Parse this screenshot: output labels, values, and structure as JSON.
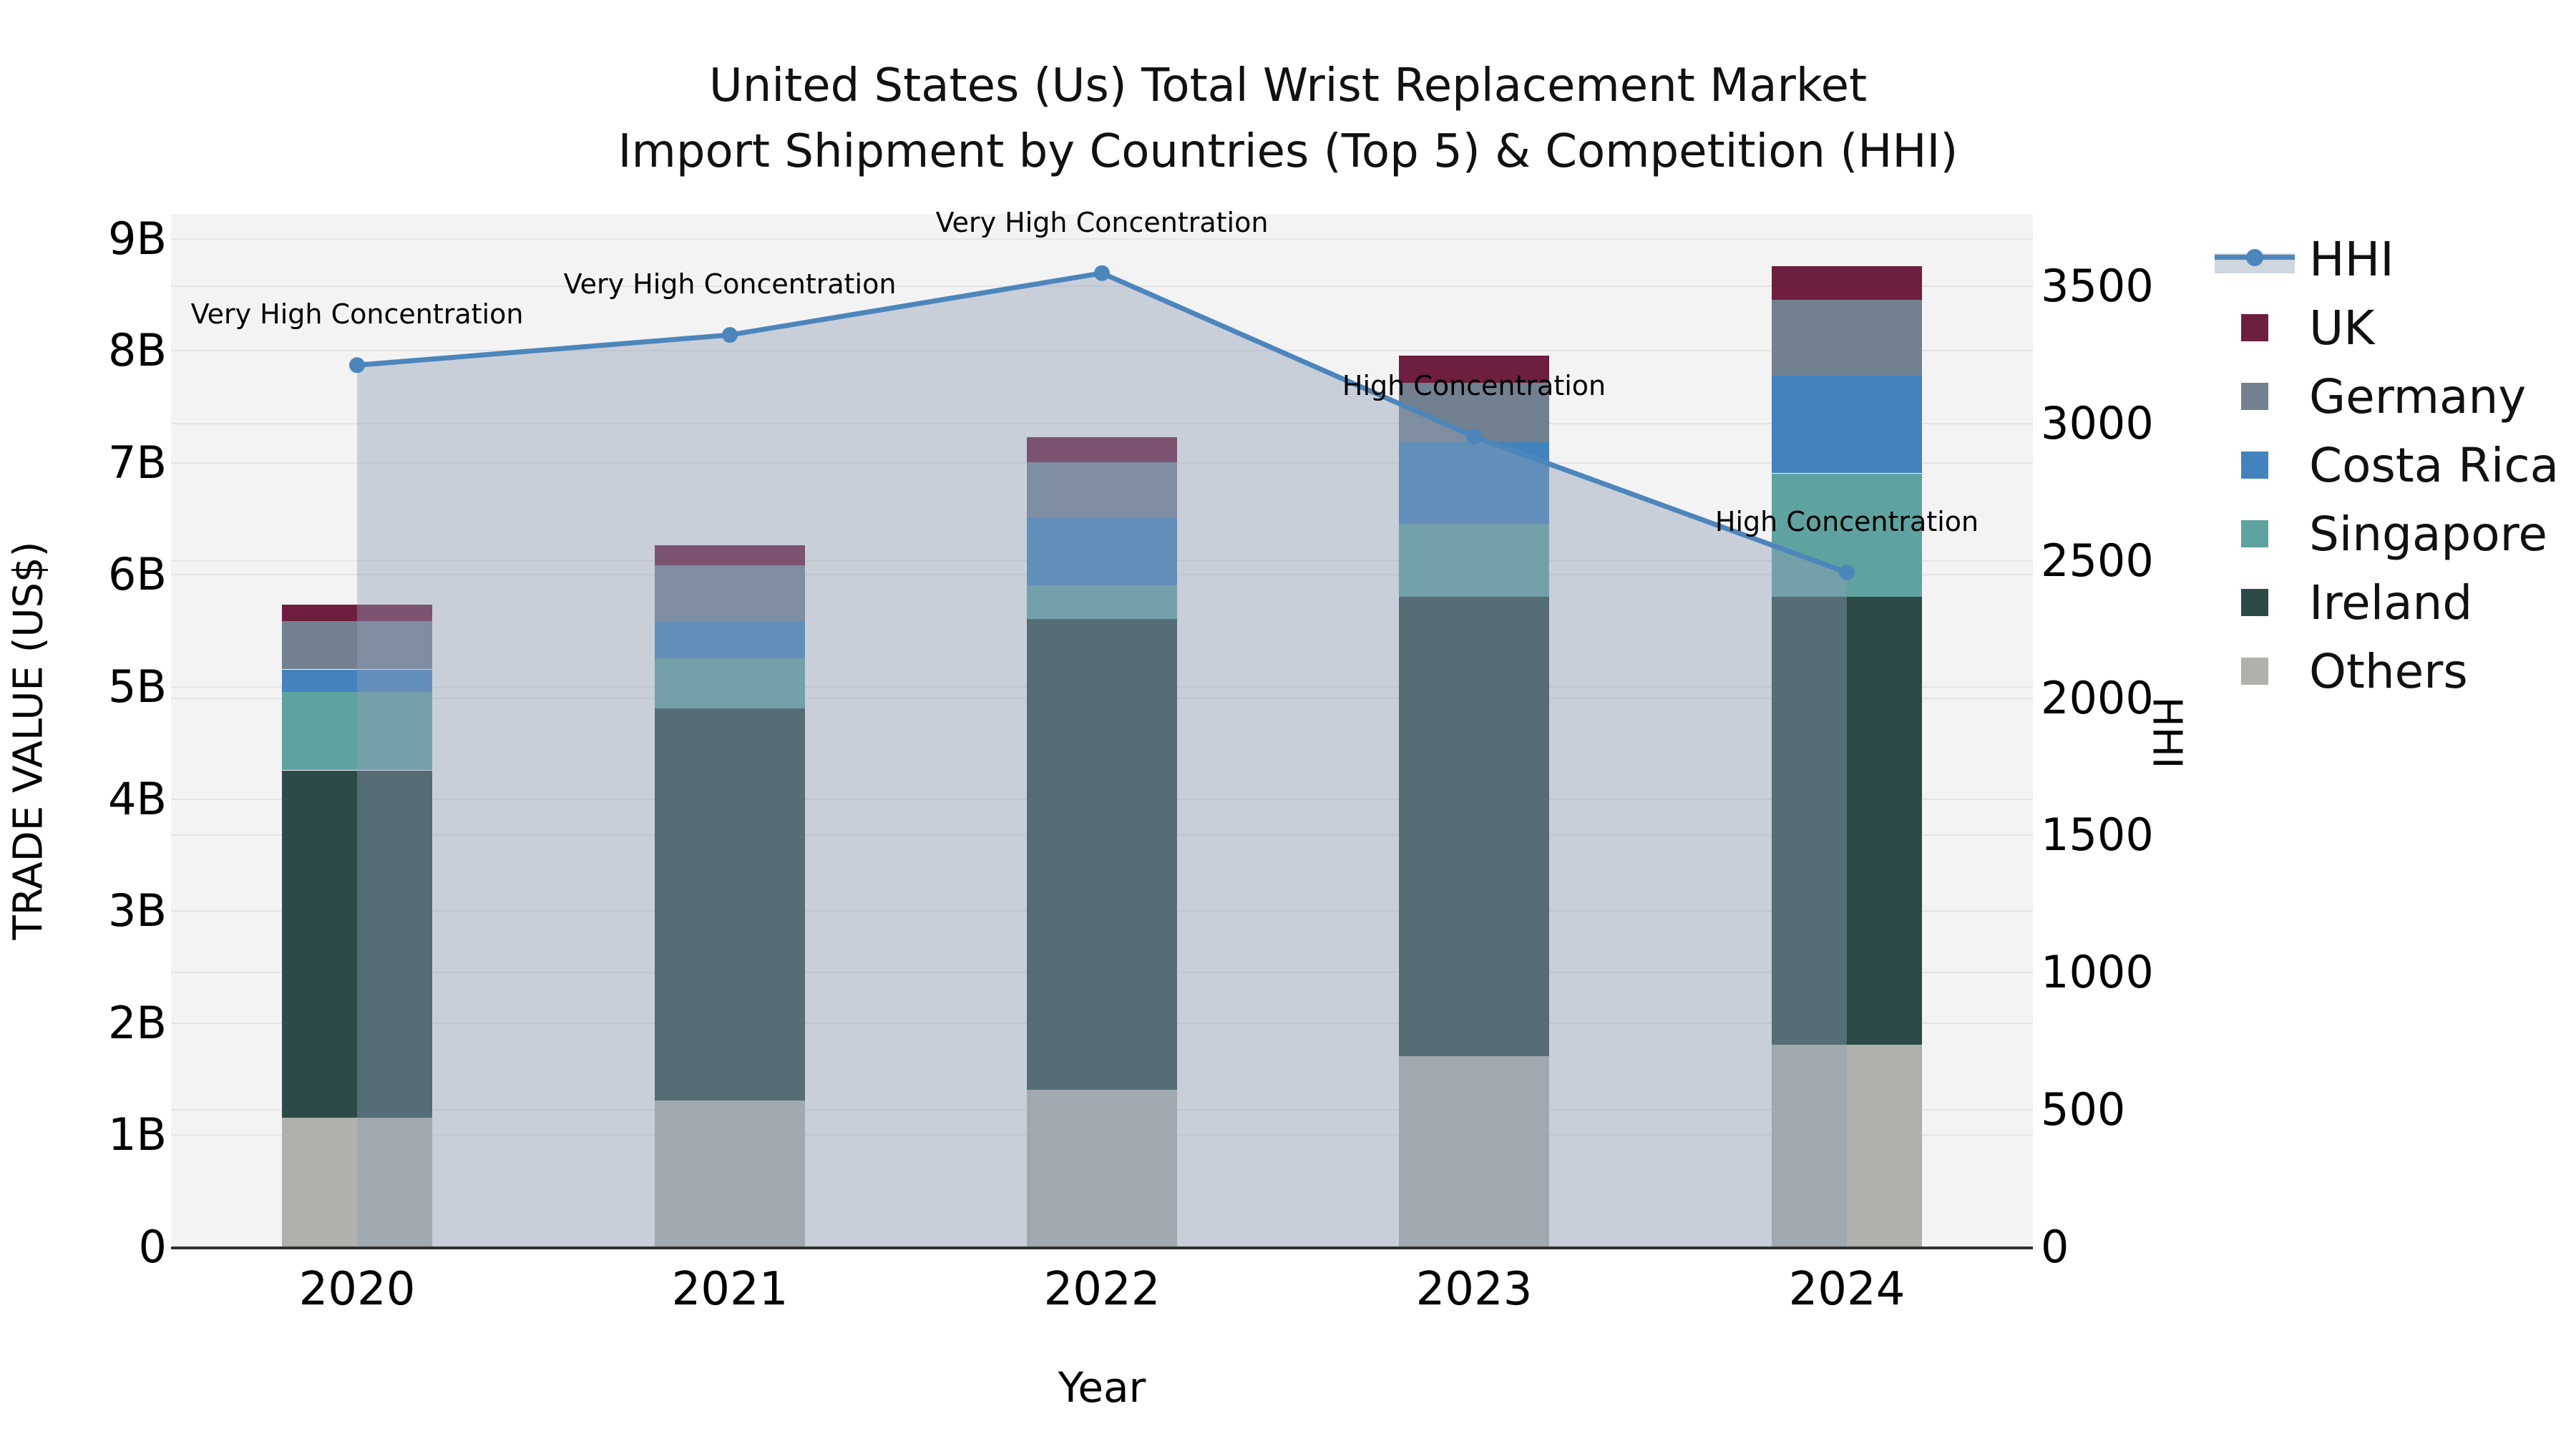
{
  "title": {
    "line1": "United States (Us) Total Wrist Replacement Market",
    "line2": "Import Shipment by Countries (Top 5) & Competition (HHI)"
  },
  "axes": {
    "left": {
      "title": "TRADE VALUE (US$)",
      "tick_labels": [
        "0",
        "1B",
        "2B",
        "3B",
        "4B",
        "5B",
        "6B",
        "7B",
        "8B",
        "9B"
      ]
    },
    "right": {
      "title": "HHI",
      "tick_labels": [
        "0",
        "500",
        "1000",
        "1500",
        "2000",
        "2500",
        "3000",
        "3500"
      ]
    },
    "x": {
      "title": "Year",
      "tick_labels": [
        "2020",
        "2021",
        "2022",
        "2023",
        "2024"
      ]
    }
  },
  "legend": {
    "items": [
      {
        "label": "HHI",
        "type": "line",
        "color": "#4C86BB"
      },
      {
        "label": "UK",
        "type": "box",
        "color": "#6E1E3E"
      },
      {
        "label": "Germany",
        "type": "box",
        "color": "#72818F"
      },
      {
        "label": "Costa Rica",
        "type": "box",
        "color": "#4283BD"
      },
      {
        "label": "Singapore",
        "type": "box",
        "color": "#5FA3A0"
      },
      {
        "label": "Ireland",
        "type": "box",
        "color": "#2C4B48"
      },
      {
        "label": "Others",
        "type": "box",
        "color": "#AFB1AD"
      }
    ]
  },
  "chart_data": {
    "type": "combo-stacked-bar-line",
    "title": "United States (Us) Total Wrist Replacement Market Import Shipment by Countries (Top 5) & Competition (HHI)",
    "categories": [
      "2020",
      "2021",
      "2022",
      "2023",
      "2024"
    ],
    "bar_unit": "billion US$",
    "bar_stack_order": "bottom to top",
    "bar_series": [
      {
        "name": "Others",
        "color": "#AFB1AD",
        "values": [
          1.15,
          1.3,
          1.4,
          1.7,
          1.8
        ]
      },
      {
        "name": "Ireland",
        "color": "#2C4B48",
        "values": [
          3.1,
          3.5,
          4.2,
          4.1,
          4.0
        ]
      },
      {
        "name": "Singapore",
        "color": "#5FA3A0",
        "values": [
          0.7,
          0.45,
          0.3,
          0.65,
          1.1
        ]
      },
      {
        "name": "Costa Rica",
        "color": "#4283BD",
        "values": [
          0.2,
          0.33,
          0.6,
          0.73,
          0.87
        ]
      },
      {
        "name": "Germany",
        "color": "#72818F",
        "values": [
          0.43,
          0.5,
          0.5,
          0.53,
          0.68
        ]
      },
      {
        "name": "UK",
        "color": "#6E1E3E",
        "values": [
          0.15,
          0.18,
          0.22,
          0.24,
          0.3
        ]
      }
    ],
    "bar_totals": [
      5.73,
      6.26,
      7.22,
      7.95,
      8.75
    ],
    "line_series": {
      "name": "HHI",
      "axis": "right",
      "color": "#4C86BB",
      "fill": "rgba(143,157,180,0.42)",
      "values": [
        3210,
        3320,
        3545,
        2950,
        2455
      ]
    },
    "annotations": [
      {
        "category": "2020",
        "text": "Very High Concentration"
      },
      {
        "category": "2021",
        "text": "Very High Concentration"
      },
      {
        "category": "2022",
        "text": "Very High Concentration"
      },
      {
        "category": "2023",
        "text": "High Concentration"
      },
      {
        "category": "2024",
        "text": "High Concentration"
      }
    ],
    "xlabel": "Year",
    "ylabel_left": "TRADE VALUE (US$)",
    "ylabel_right": "HHI",
    "ylim_left": [
      0,
      9.2
    ],
    "ylim_right": [
      0,
      3760
    ],
    "grid": true,
    "legend_position": "right",
    "plot_background": "#f3f3f3"
  }
}
